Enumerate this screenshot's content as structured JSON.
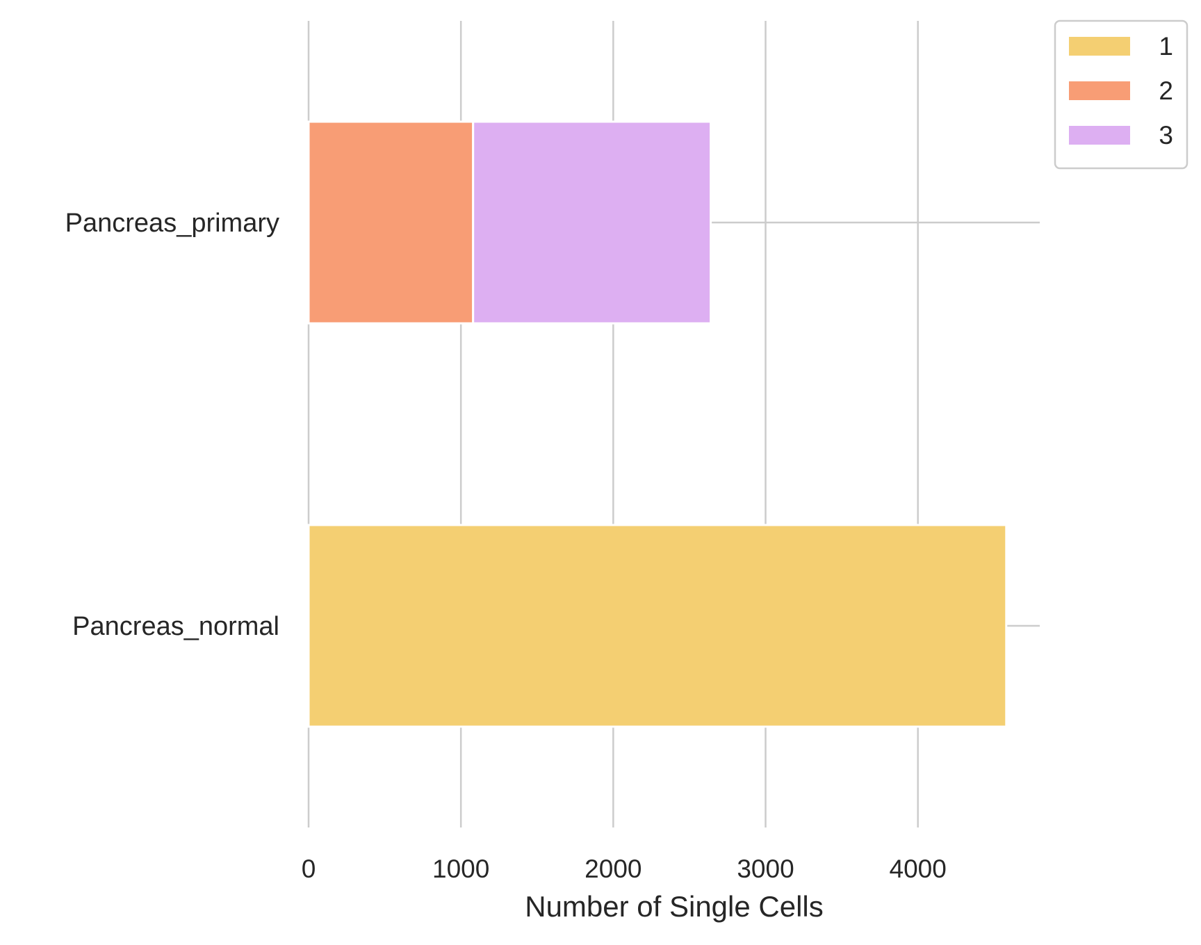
{
  "chart_data": {
    "type": "bar",
    "orientation": "horizontal",
    "stacked": true,
    "categories": [
      "Pancreas_primary",
      "Pancreas_normal"
    ],
    "series": [
      {
        "name": "1",
        "color": "#F4CF72",
        "values": [
          0,
          4580
        ]
      },
      {
        "name": "2",
        "color": "#F89D75",
        "values": [
          1080,
          0
        ]
      },
      {
        "name": "3",
        "color": "#DDAFF2",
        "values": [
          1560,
          0
        ]
      }
    ],
    "title": "",
    "xlabel": "Number of Single Cells",
    "ylabel": "",
    "xlim": [
      0,
      4800
    ],
    "xticks": [
      0,
      1000,
      2000,
      3000,
      4000
    ],
    "xtick_labels": [
      "0",
      "1000",
      "2000",
      "3000",
      "4000"
    ],
    "grid": true,
    "legend_position": "upper-right-outside",
    "colors": {
      "grid": "#CCCCCC",
      "text": "#262626",
      "background": "#FFFFFF"
    }
  }
}
